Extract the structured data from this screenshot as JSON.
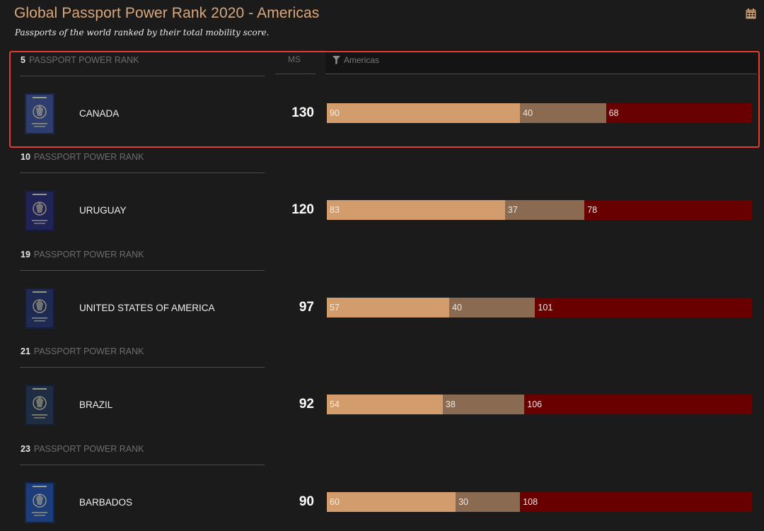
{
  "header": {
    "title": "Global Passport Power Rank 2020 - Americas",
    "subtitle": "Passports of the world ranked by their total mobility score.",
    "calendar_icon": "calendar-icon"
  },
  "table": {
    "ms_header": "MS",
    "filter_header": "Americas",
    "rank_suffix": "PASSPORT POWER RANK"
  },
  "colors": {
    "visa_free": "#d29c6d",
    "visa_on_arrival": "#8b6a52",
    "visa_required": "#680000",
    "highlight": "#e23b2f",
    "title": "#d9a77b"
  },
  "rows": [
    {
      "rank": "5",
      "country": "CANADA",
      "ms": "130",
      "visa_free": "90",
      "visa_on_arrival": "40",
      "visa_required": "68",
      "passport_color": "#2d3d6e"
    },
    {
      "rank": "10",
      "country": "URUGUAY",
      "ms": "120",
      "visa_free": "83",
      "visa_on_arrival": "37",
      "visa_required": "78",
      "passport_color": "#1f2356"
    },
    {
      "rank": "19",
      "country": "UNITED STATES OF AMERICA",
      "ms": "97",
      "visa_free": "57",
      "visa_on_arrival": "40",
      "visa_required": "101",
      "passport_color": "#1e2a52"
    },
    {
      "rank": "21",
      "country": "BRAZIL",
      "ms": "92",
      "visa_free": "54",
      "visa_on_arrival": "38",
      "visa_required": "106",
      "passport_color": "#1f2d44"
    },
    {
      "rank": "23",
      "country": "BARBADOS",
      "ms": "90",
      "visa_free": "60",
      "visa_on_arrival": "30",
      "visa_required": "108",
      "passport_color": "#1d3c7a"
    }
  ]
}
